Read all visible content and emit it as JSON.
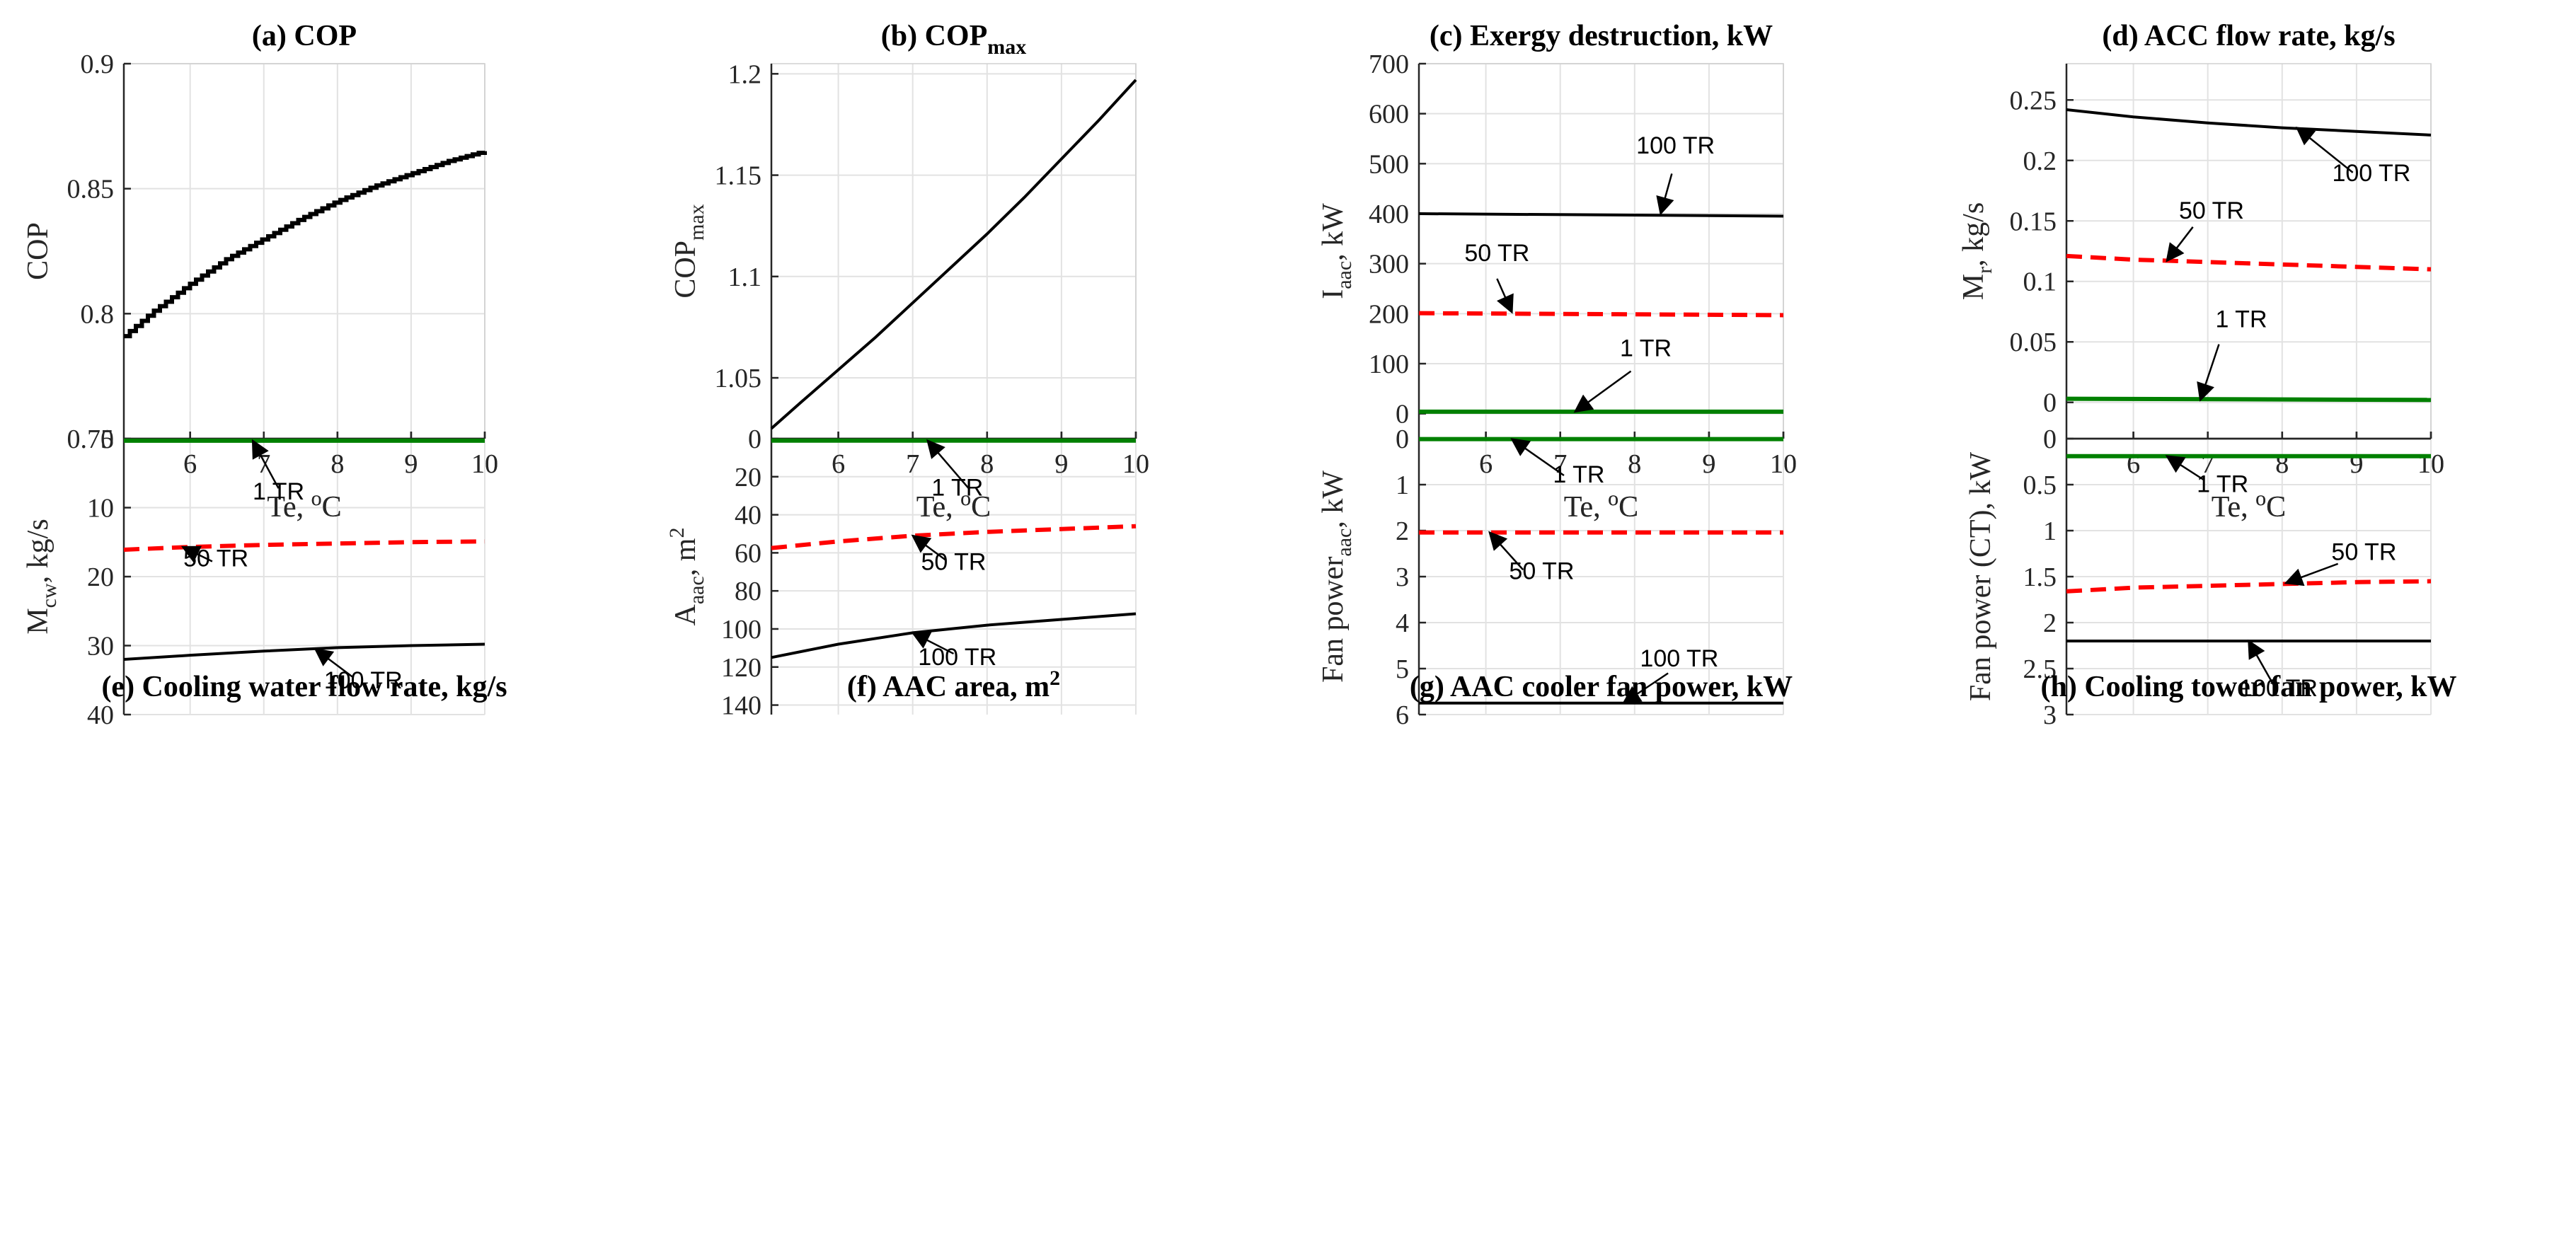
{
  "figure": {
    "colors": {
      "black": "#000000",
      "red": "#ff0000",
      "green": "#008000",
      "grid": "#e2e2e2",
      "axis": "#262626"
    }
  },
  "chart_data": [
    {
      "type": "line",
      "title": "(a) COP",
      "xlabel": "Te, oC",
      "ylabel": "COP",
      "xlim": [
        5.1,
        10
      ],
      "ylim": [
        0.75,
        0.9
      ],
      "xticks": [
        6,
        7,
        8,
        9,
        10
      ],
      "yticks": [
        0.75,
        0.8,
        0.85,
        0.9
      ],
      "ytick_labels": [
        "0.75",
        "0.8",
        "0.85",
        "0.9"
      ],
      "grid": true,
      "series": [
        {
          "color": "#000000",
          "style": "stepped",
          "x": [
            5.1,
            5.5,
            6.0,
            6.5,
            7.0,
            7.5,
            8.0,
            8.5,
            9.0,
            9.5,
            10.0
          ],
          "y": [
            0.791,
            0.801,
            0.812,
            0.822,
            0.83,
            0.838,
            0.845,
            0.851,
            0.856,
            0.861,
            0.865
          ]
        }
      ],
      "annotations": []
    },
    {
      "type": "line",
      "title": "(b) COP",
      "title_sub": "max",
      "xlabel": "Te, oC",
      "ylabel": "COP",
      "ylabel_sub": "max",
      "xlim": [
        5.1,
        10
      ],
      "ylim": [
        1.02,
        1.205
      ],
      "xticks": [
        6,
        7,
        8,
        9,
        10
      ],
      "yticks": [
        1.05,
        1.1,
        1.15,
        1.2
      ],
      "ytick_labels": [
        "1.05",
        "1.1",
        "1.15",
        "1.2"
      ],
      "grid": true,
      "series": [
        {
          "color": "#000000",
          "style": "solid",
          "x": [
            5.1,
            5.5,
            6.0,
            6.5,
            7.0,
            7.5,
            8.0,
            8.5,
            9.0,
            9.5,
            10.0
          ],
          "y": [
            1.025,
            1.038,
            1.054,
            1.07,
            1.087,
            1.104,
            1.121,
            1.139,
            1.158,
            1.177,
            1.197
          ]
        }
      ],
      "annotations": []
    },
    {
      "type": "line",
      "title": "(c) Exergy destruction, kW",
      "xlabel": "Te, oC",
      "ylabel": "I",
      "ylabel_sub": "aac",
      "ylabel_rest": ", kW",
      "xlim": [
        5.1,
        10
      ],
      "ylim": [
        -50,
        700
      ],
      "xticks": [
        6,
        7,
        8,
        9,
        10
      ],
      "yticks": [
        0,
        100,
        200,
        300,
        400,
        500,
        600,
        700
      ],
      "ytick_labels": [
        "0",
        "100",
        "200",
        "300",
        "400",
        "500",
        "600",
        "700"
      ],
      "grid": true,
      "series": [
        {
          "color": "#000000",
          "style": "solid",
          "x": [
            5.1,
            10
          ],
          "y": [
            400,
            395
          ]
        },
        {
          "color": "#ff0000",
          "style": "dashed",
          "x": [
            5.1,
            10
          ],
          "y": [
            201,
            197
          ]
        },
        {
          "color": "#008000",
          "style": "solid",
          "x": [
            5.1,
            10
          ],
          "y": [
            4,
            4
          ]
        }
      ],
      "annotations": [
        {
          "text": "100 TR",
          "text_at": [
            8.55,
            520
          ],
          "arrow_from": [
            8.5,
            480
          ],
          "arrow_to": [
            8.35,
            400
          ]
        },
        {
          "text": "50 TR",
          "text_at": [
            6.15,
            305
          ],
          "arrow_from": [
            6.15,
            270
          ],
          "arrow_to": [
            6.35,
            203
          ]
        },
        {
          "text": "1 TR",
          "text_at": [
            8.15,
            115
          ],
          "arrow_from": [
            7.95,
            85
          ],
          "arrow_to": [
            7.2,
            4
          ]
        }
      ]
    },
    {
      "type": "line",
      "title": "(d) ACC flow rate, kg/s",
      "xlabel": "Te, oC",
      "ylabel": "M",
      "ylabel_sub": "r",
      "ylabel_rest": ", kg/s",
      "xlim": [
        5.1,
        10
      ],
      "ylim": [
        -0.03,
        0.28
      ],
      "xticks": [
        6,
        7,
        8,
        9,
        10
      ],
      "yticks": [
        0,
        0.05,
        0.1,
        0.15,
        0.2,
        0.25
      ],
      "ytick_labels": [
        "0",
        "0.05",
        "0.1",
        "0.15",
        "0.2",
        "0.25"
      ],
      "grid": true,
      "series": [
        {
          "color": "#000000",
          "style": "solid",
          "x": [
            5.1,
            6.0,
            7.0,
            8.0,
            9.0,
            10.0
          ],
          "y": [
            0.242,
            0.236,
            0.231,
            0.227,
            0.224,
            0.221
          ]
        },
        {
          "color": "#ff0000",
          "style": "dashed",
          "x": [
            5.1,
            6.0,
            7.0,
            8.0,
            9.0,
            10.0
          ],
          "y": [
            0.121,
            0.118,
            0.116,
            0.114,
            0.112,
            0.11
          ]
        },
        {
          "color": "#008000",
          "style": "solid",
          "x": [
            5.1,
            10.0
          ],
          "y": [
            0.003,
            0.002
          ]
        }
      ],
      "annotations": [
        {
          "text": "100 TR",
          "text_at": [
            9.2,
            0.183
          ],
          "arrow_from": [
            8.95,
            0.19
          ],
          "arrow_to": [
            8.2,
            0.227
          ]
        },
        {
          "text": "50 TR",
          "text_at": [
            7.05,
            0.152
          ],
          "arrow_from": [
            6.8,
            0.145
          ],
          "arrow_to": [
            6.45,
            0.117
          ]
        },
        {
          "text": "1 TR",
          "text_at": [
            7.45,
            0.062
          ],
          "arrow_from": [
            7.15,
            0.048
          ],
          "arrow_to": [
            6.9,
            0.002
          ]
        }
      ]
    },
    {
      "type": "line",
      "title": "(e) Cooling water flow rate, kg/s",
      "xlabel": "Te, oC",
      "ylabel": "M",
      "ylabel_sub": "cw",
      "ylabel_rest": ", kg/s",
      "xlim": [
        5.1,
        10
      ],
      "ylim": [
        0,
        40
      ],
      "xticks": [
        6,
        7,
        8,
        9,
        10
      ],
      "yticks": [
        0,
        10,
        20,
        30,
        40
      ],
      "ytick_labels": [
        "0",
        "10",
        "20",
        "30",
        "40"
      ],
      "grid": true,
      "series": [
        {
          "color": "#000000",
          "style": "solid",
          "x": [
            5.1,
            6.0,
            7.0,
            8.0,
            9.0,
            10.0
          ],
          "y": [
            32.0,
            31.4,
            30.8,
            30.3,
            30.0,
            29.8
          ]
        },
        {
          "color": "#ff0000",
          "style": "dashed",
          "x": [
            5.1,
            6.0,
            7.0,
            8.0,
            9.0,
            10.0
          ],
          "y": [
            16.1,
            15.7,
            15.4,
            15.2,
            15.0,
            14.9
          ]
        },
        {
          "color": "#008000",
          "style": "solid",
          "x": [
            5.1,
            10.0
          ],
          "y": [
            0.3,
            0.3
          ]
        }
      ],
      "annotations": [
        {
          "text": "100 TR",
          "text_at": [
            8.35,
            36.2
          ],
          "arrow_from": [
            8.2,
            34.5
          ],
          "arrow_to": [
            7.7,
            30.5
          ]
        },
        {
          "text": "50 TR",
          "text_at": [
            6.35,
            18.5
          ],
          "arrow_from": [
            6.3,
            17.8
          ],
          "arrow_to": [
            5.9,
            15.7
          ]
        },
        {
          "text": "1 TR",
          "text_at": [
            7.2,
            8.8
          ],
          "arrow_from": [
            7.2,
            7.2
          ],
          "arrow_to": [
            6.85,
            0.3
          ]
        }
      ]
    },
    {
      "type": "line",
      "title": "(f) AAC area, m",
      "title_sup": "2",
      "xlabel": "Te, oC",
      "ylabel": "A",
      "ylabel_sub": "aac",
      "ylabel_rest": ", m",
      "ylabel_sup": "2",
      "xlim": [
        5.1,
        10
      ],
      "ylim": [
        0,
        145
      ],
      "xticks": [
        6,
        7,
        8,
        9,
        10
      ],
      "yticks": [
        0,
        20,
        40,
        60,
        80,
        100,
        120,
        140
      ],
      "ytick_labels": [
        "0",
        "20",
        "40",
        "60",
        "80",
        "100",
        "120",
        "140"
      ],
      "grid": true,
      "series": [
        {
          "color": "#000000",
          "style": "solid",
          "x": [
            5.1,
            6.0,
            7.0,
            8.0,
            9.0,
            10.0
          ],
          "y": [
            115,
            108,
            102,
            98,
            95,
            92
          ]
        },
        {
          "color": "#ff0000",
          "style": "dashed",
          "x": [
            5.1,
            6.0,
            7.0,
            8.0,
            9.0,
            10.0
          ],
          "y": [
            57.5,
            54,
            51,
            49,
            47.5,
            46
          ]
        },
        {
          "color": "#008000",
          "style": "solid",
          "x": [
            5.1,
            10.0
          ],
          "y": [
            1,
            1
          ]
        }
      ],
      "annotations": [
        {
          "text": "100 TR",
          "text_at": [
            7.6,
            119
          ],
          "arrow_from": [
            7.55,
            113
          ],
          "arrow_to": [
            7.0,
            102
          ]
        },
        {
          "text": "50 TR",
          "text_at": [
            7.55,
            69
          ],
          "arrow_from": [
            7.45,
            64
          ],
          "arrow_to": [
            7.0,
            51
          ]
        },
        {
          "text": "1 TR",
          "text_at": [
            7.6,
            30
          ],
          "arrow_from": [
            7.75,
            26
          ],
          "arrow_to": [
            7.2,
            1
          ]
        }
      ]
    },
    {
      "type": "line",
      "title": "(g) AAC cooler fan power, kW",
      "xlabel": "Te, oC",
      "ylabel": "Fan power",
      "ylabel_sub": "aac",
      "ylabel_rest": ", kW",
      "xlim": [
        5.1,
        10
      ],
      "ylim": [
        0,
        6
      ],
      "xticks": [
        6,
        7,
        8,
        9,
        10
      ],
      "yticks": [
        0,
        1,
        2,
        3,
        4,
        5,
        6
      ],
      "ytick_labels": [
        "0",
        "1",
        "2",
        "3",
        "4",
        "5",
        "6"
      ],
      "grid": true,
      "series": [
        {
          "color": "#000000",
          "style": "solid",
          "x": [
            5.1,
            10.0
          ],
          "y": [
            5.75,
            5.75
          ]
        },
        {
          "color": "#ff0000",
          "style": "dashed",
          "x": [
            5.1,
            10.0
          ],
          "y": [
            2.04,
            2.04
          ]
        },
        {
          "color": "#008000",
          "style": "solid",
          "x": [
            5.1,
            10.0
          ],
          "y": [
            0.01,
            0.01
          ]
        }
      ],
      "annotations": [
        {
          "text": "100 TR",
          "text_at": [
            8.6,
            4.95
          ],
          "arrow_from": [
            8.45,
            5.1
          ],
          "arrow_to": [
            7.85,
            5.75
          ]
        },
        {
          "text": "50 TR",
          "text_at": [
            6.75,
            3.05
          ],
          "arrow_from": [
            6.5,
            2.85
          ],
          "arrow_to": [
            6.05,
            2.04
          ]
        },
        {
          "text": "1 TR",
          "text_at": [
            7.25,
            0.95
          ],
          "arrow_from": [
            7.05,
            0.8
          ],
          "arrow_to": [
            6.35,
            0.01
          ]
        }
      ]
    },
    {
      "type": "line",
      "title": "(h) Cooling tower fan power, kW",
      "xlabel": "Te, oC",
      "ylabel": "Fan power (CT), kW",
      "xlim": [
        5.1,
        10
      ],
      "ylim": [
        0,
        3
      ],
      "xticks": [
        6,
        7,
        8,
        9,
        10
      ],
      "yticks": [
        0,
        0.5,
        1,
        1.5,
        2,
        2.5,
        3
      ],
      "ytick_labels": [
        "0",
        "0.5",
        "1",
        "1.5",
        "2",
        "2.5",
        "3"
      ],
      "grid": true,
      "series": [
        {
          "color": "#000000",
          "style": "solid",
          "x": [
            5.1,
            10.0
          ],
          "y": [
            2.2,
            2.2
          ]
        },
        {
          "color": "#ff0000",
          "style": "dashed",
          "x": [
            5.1,
            6.0,
            7.0,
            8.0,
            9.0,
            10.0
          ],
          "y": [
            1.66,
            1.62,
            1.6,
            1.58,
            1.56,
            1.55
          ]
        },
        {
          "color": "#008000",
          "style": "solid",
          "x": [
            5.1,
            10.0
          ],
          "y": [
            0.19,
            0.19
          ]
        }
      ],
      "annotations": [
        {
          "text": "100 TR",
          "text_at": [
            7.95,
            2.8
          ],
          "arrow_from": [
            7.9,
            2.7
          ],
          "arrow_to": [
            7.55,
            2.2
          ]
        },
        {
          "text": "50 TR",
          "text_at": [
            9.1,
            1.32
          ],
          "arrow_from": [
            8.75,
            1.36
          ],
          "arrow_to": [
            8.05,
            1.57
          ]
        },
        {
          "text": "1 TR",
          "text_at": [
            7.2,
            0.58
          ],
          "arrow_from": [
            6.95,
            0.45
          ],
          "arrow_to": [
            6.45,
            0.19
          ]
        }
      ]
    }
  ]
}
